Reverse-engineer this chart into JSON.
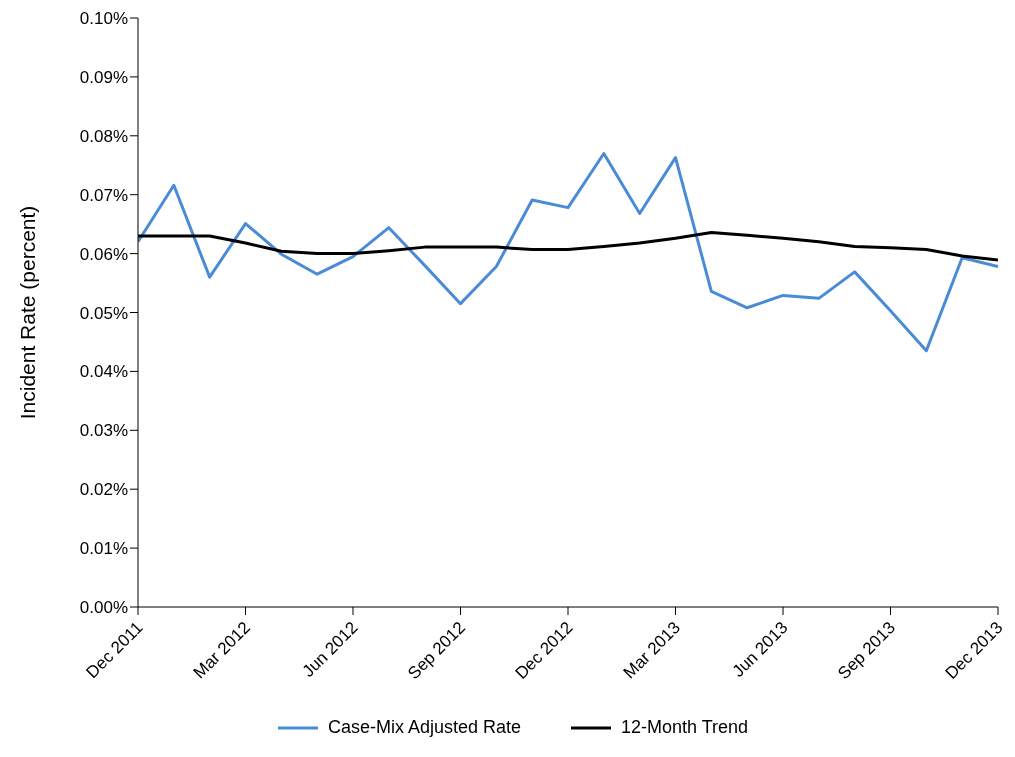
{
  "chart_data": {
    "type": "line",
    "ylabel": "Incident Rate (percent)",
    "x": [
      "2011-12",
      "2012-01",
      "2012-02",
      "2012-03",
      "2012-04",
      "2012-05",
      "2012-06",
      "2012-07",
      "2012-08",
      "2012-09",
      "2012-10",
      "2012-11",
      "2012-12",
      "2013-01",
      "2013-02",
      "2013-03",
      "2013-04",
      "2013-05",
      "2013-06",
      "2013-07",
      "2013-08",
      "2013-09",
      "2013-10",
      "2013-11",
      "2013-12"
    ],
    "series": [
      {
        "name": "Case-Mix Adjusted Rate",
        "color": "#4a8bd6",
        "values": [
          0.062,
          0.0716,
          0.056,
          0.0651,
          0.0599,
          0.0565,
          0.0595,
          0.0644,
          0.058,
          0.0515,
          0.0578,
          0.0691,
          0.0678,
          0.077,
          0.0668,
          0.0763,
          0.0536,
          0.0508,
          0.0529,
          0.0524,
          0.0569,
          0.0503,
          0.0435,
          0.0593,
          0.0578
        ]
      },
      {
        "name": "12-Month Trend",
        "color": "#000000",
        "values": [
          0.063,
          0.063,
          0.063,
          0.0618,
          0.0604,
          0.06,
          0.06,
          0.0605,
          0.0611,
          0.0611,
          0.0611,
          0.0607,
          0.0607,
          0.0612,
          0.0618,
          0.0626,
          0.0636,
          0.0631,
          0.0626,
          0.062,
          0.0612,
          0.061,
          0.0607,
          0.0596,
          0.0589
        ]
      }
    ],
    "xlim": [
      "2011-12",
      "2013-12"
    ],
    "xticks": [
      {
        "value": "2011-12",
        "label": "Dec 2011"
      },
      {
        "value": "2012-03",
        "label": "Mar 2012"
      },
      {
        "value": "2012-06",
        "label": "Jun 2012"
      },
      {
        "value": "2012-09",
        "label": "Sep 2012"
      },
      {
        "value": "2012-12",
        "label": "Dec 2012"
      },
      {
        "value": "2013-03",
        "label": "Mar 2013"
      },
      {
        "value": "2013-06",
        "label": "Jun 2013"
      },
      {
        "value": "2013-09",
        "label": "Sep 2013"
      },
      {
        "value": "2013-12",
        "label": "Dec 2013"
      }
    ],
    "ylim": [
      0,
      0.1
    ],
    "yticks": [
      {
        "value": 0,
        "label": "0.00%"
      },
      {
        "value": 0.01,
        "label": "0.01%"
      },
      {
        "value": 0.02,
        "label": "0.02%"
      },
      {
        "value": 0.03,
        "label": "0.03%"
      },
      {
        "value": 0.04,
        "label": "0.04%"
      },
      {
        "value": 0.05,
        "label": "0.05%"
      },
      {
        "value": 0.06,
        "label": "0.06%"
      },
      {
        "value": 0.07,
        "label": "0.07%"
      },
      {
        "value": 0.08,
        "label": "0.08%"
      },
      {
        "value": 0.09,
        "label": "0.09%"
      },
      {
        "value": 0.1,
        "label": "0.10%"
      }
    ],
    "grid": false,
    "legend": "bottom",
    "line_style": "solid"
  }
}
